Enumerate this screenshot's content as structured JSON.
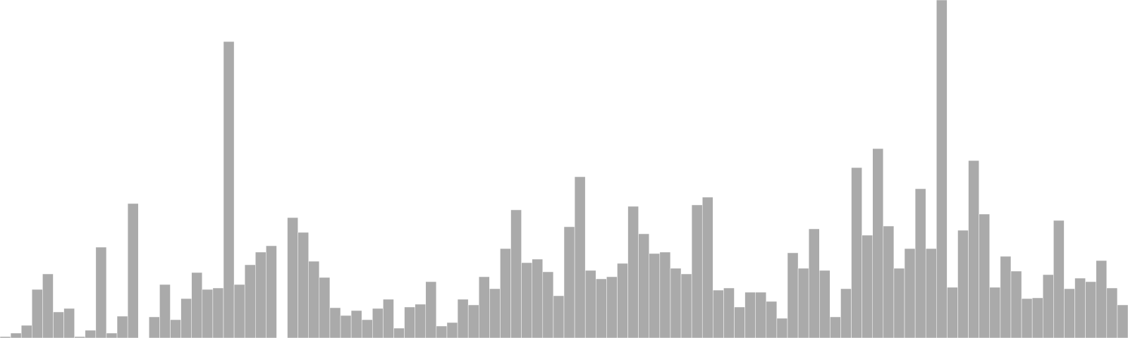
{
  "chart_data": {
    "type": "bar",
    "title": "",
    "xlabel": "",
    "ylabel": "",
    "ylim": [
      0,
      480
    ],
    "grid": false,
    "legend": "none",
    "bar_color": "#aaaaaa",
    "bar_edge_color": "#ffffff",
    "values": [
      2,
      7,
      18,
      69,
      91,
      37,
      42,
      2,
      11,
      129,
      7,
      31,
      191,
      0,
      30,
      76,
      26,
      56,
      93,
      69,
      71,
      421,
      76,
      104,
      122,
      131,
      0,
      171,
      150,
      109,
      86,
      43,
      32,
      39,
      26,
      42,
      55,
      14,
      44,
      48,
      80,
      17,
      22,
      55,
      47,
      87,
      70,
      127,
      182,
      107,
      112,
      94,
      60,
      158,
      229,
      96,
      84,
      87,
      106,
      187,
      148,
      120,
      122,
      99,
      91,
      189,
      200,
      68,
      71,
      44,
      65,
      65,
      52,
      28,
      121,
      99,
      155,
      96,
      30,
      70,
      242,
      146,
      269,
      159,
      99,
      127,
      212,
      127,
      480,
      72,
      153,
      252,
      176,
      72,
      116,
      95,
      56,
      57,
      90,
      167,
      70,
      85,
      80,
      110,
      71,
      47
    ]
  }
}
